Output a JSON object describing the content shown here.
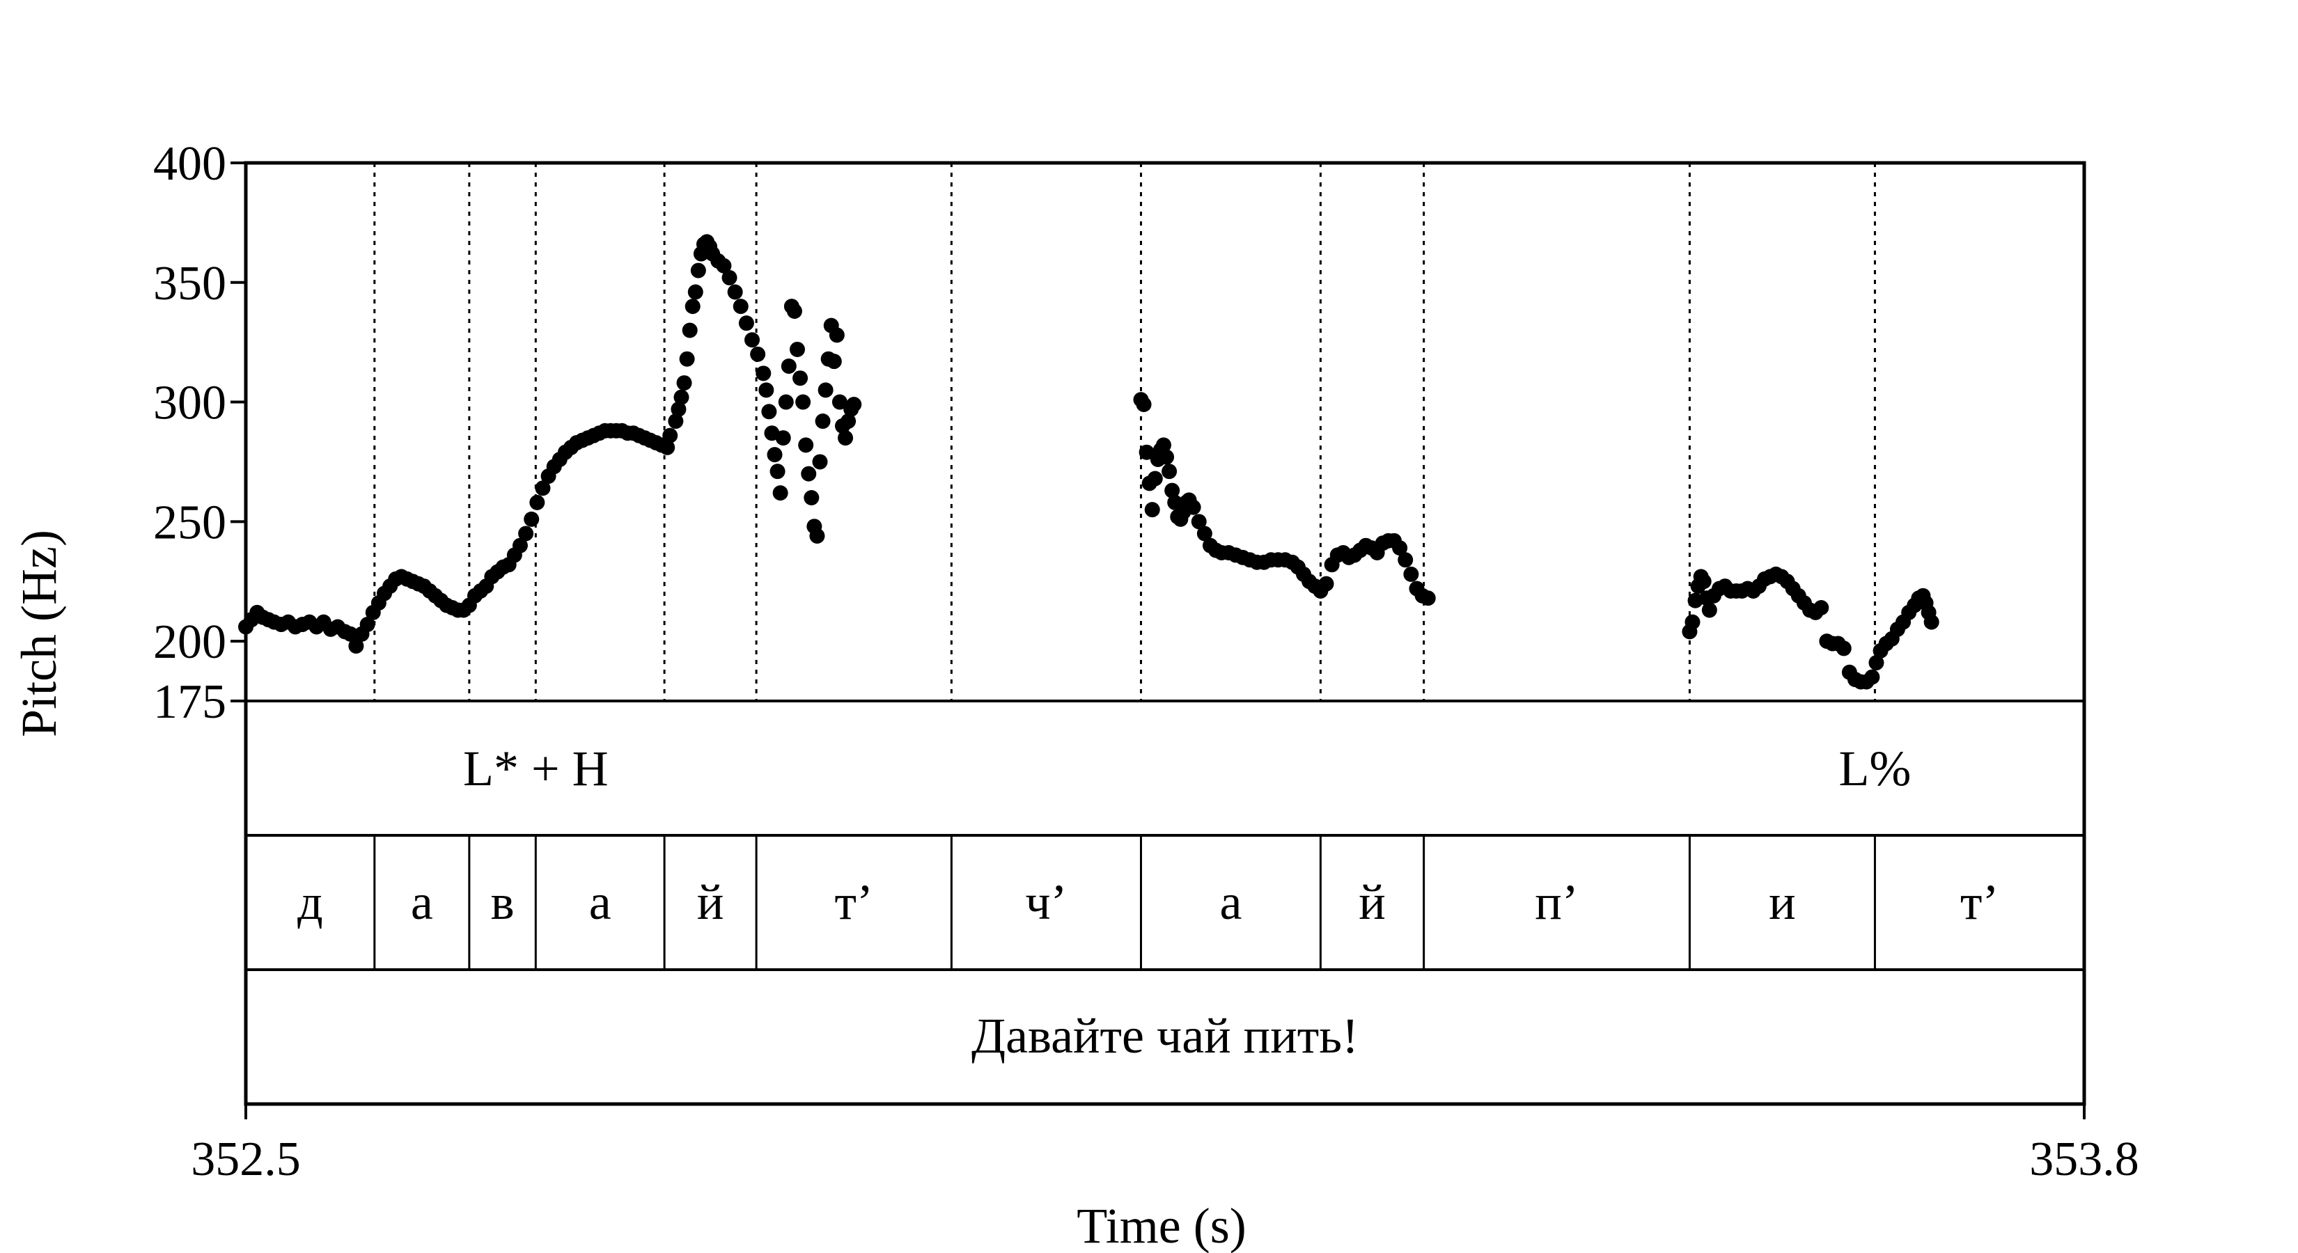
{
  "chart_data": {
    "type": "scatter",
    "title": "",
    "xlabel": "Time (s)",
    "ylabel": "Pitch (Hz)",
    "xlim": [
      352.5,
      353.8
    ],
    "ylim": [
      175,
      400
    ],
    "y_ticks": [
      175,
      200,
      250,
      300,
      350,
      400
    ],
    "x_tick_labels": [
      "352.5",
      "353.8"
    ],
    "grid": false,
    "boundary_times": [
      352.591,
      352.658,
      352.705,
      352.796,
      352.861,
      352.999,
      353.133,
      353.26,
      353.333,
      353.521,
      353.652
    ],
    "tiers": {
      "tones": [
        {
          "label": "L* + H",
          "time": 352.705
        },
        {
          "label": "L%",
          "time": 353.652
        }
      ],
      "segments": [
        "д",
        "а",
        "в",
        "а",
        "й",
        "т’",
        "ч’",
        "а",
        "й",
        "п’",
        "и",
        "т’"
      ],
      "sentence": "Давайте чай пить!"
    },
    "series": [
      {
        "values": [
          [
            352.5,
            206
          ],
          [
            352.504,
            209
          ],
          [
            352.508,
            212
          ],
          [
            352.512,
            210
          ],
          [
            352.516,
            209
          ],
          [
            352.52,
            208
          ],
          [
            352.525,
            207
          ],
          [
            352.53,
            208
          ],
          [
            352.535,
            206
          ],
          [
            352.54,
            207
          ],
          [
            352.545,
            208
          ],
          [
            352.55,
            206
          ],
          [
            352.555,
            208
          ],
          [
            352.56,
            205
          ],
          [
            352.565,
            206
          ],
          [
            352.57,
            204
          ],
          [
            352.574,
            203
          ],
          [
            352.578,
            198
          ],
          [
            352.582,
            203
          ],
          [
            352.586,
            207
          ],
          [
            352.59,
            212
          ],
          [
            352.594,
            216
          ],
          [
            352.598,
            220
          ],
          [
            352.602,
            223
          ],
          [
            352.606,
            226
          ],
          [
            352.61,
            227
          ],
          [
            352.614,
            226
          ],
          [
            352.618,
            225
          ],
          [
            352.622,
            224
          ],
          [
            352.626,
            223
          ],
          [
            352.63,
            221
          ],
          [
            352.634,
            219
          ],
          [
            352.638,
            217
          ],
          [
            352.642,
            215
          ],
          [
            352.646,
            214
          ],
          [
            352.65,
            213
          ],
          [
            352.654,
            213
          ],
          [
            352.658,
            215
          ],
          [
            352.662,
            219
          ],
          [
            352.666,
            221
          ],
          [
            352.67,
            223
          ],
          [
            352.674,
            227
          ],
          [
            352.678,
            229
          ],
          [
            352.682,
            231
          ],
          [
            352.686,
            232
          ],
          [
            352.69,
            236
          ],
          [
            352.694,
            240
          ],
          [
            352.698,
            245
          ],
          [
            352.702,
            251
          ],
          [
            352.706,
            258
          ],
          [
            352.71,
            264
          ],
          [
            352.714,
            269
          ],
          [
            352.718,
            273
          ],
          [
            352.722,
            276
          ],
          [
            352.726,
            279
          ],
          [
            352.73,
            281
          ],
          [
            352.734,
            283
          ],
          [
            352.738,
            284
          ],
          [
            352.742,
            285
          ],
          [
            352.746,
            286
          ],
          [
            352.75,
            287
          ],
          [
            352.754,
            288
          ],
          [
            352.758,
            288
          ],
          [
            352.762,
            288
          ],
          [
            352.766,
            288
          ],
          [
            352.77,
            287
          ],
          [
            352.774,
            287
          ],
          [
            352.778,
            286
          ],
          [
            352.782,
            285
          ],
          [
            352.786,
            284
          ],
          [
            352.79,
            283
          ],
          [
            352.794,
            282
          ],
          [
            352.798,
            281
          ],
          [
            352.8,
            286
          ],
          [
            352.804,
            292
          ],
          [
            352.806,
            297
          ],
          [
            352.808,
            302
          ],
          [
            352.81,
            308
          ],
          [
            352.812,
            318
          ],
          [
            352.814,
            330
          ],
          [
            352.816,
            340
          ],
          [
            352.818,
            346
          ],
          [
            352.82,
            355
          ],
          [
            352.822,
            362
          ],
          [
            352.824,
            366
          ],
          [
            352.826,
            367
          ],
          [
            352.828,
            365
          ],
          [
            352.83,
            362
          ],
          [
            352.834,
            359
          ],
          [
            352.838,
            357
          ],
          [
            352.842,
            352
          ],
          [
            352.846,
            346
          ],
          [
            352.85,
            340
          ],
          [
            352.854,
            333
          ],
          [
            352.858,
            326
          ],
          [
            352.862,
            320
          ],
          [
            352.866,
            312
          ],
          [
            352.868,
            305
          ],
          [
            352.87,
            296
          ],
          [
            352.872,
            287
          ],
          [
            352.874,
            278
          ],
          [
            352.876,
            271
          ],
          [
            352.878,
            262
          ],
          [
            352.88,
            285
          ],
          [
            352.882,
            300
          ],
          [
            352.884,
            315
          ],
          [
            352.886,
            340
          ],
          [
            352.888,
            338
          ],
          [
            352.89,
            322
          ],
          [
            352.892,
            310
          ],
          [
            352.894,
            300
          ],
          [
            352.896,
            282
          ],
          [
            352.898,
            270
          ],
          [
            352.9,
            260
          ],
          [
            352.902,
            248
          ],
          [
            352.904,
            244
          ],
          [
            352.906,
            275
          ],
          [
            352.908,
            292
          ],
          [
            352.91,
            305
          ],
          [
            352.912,
            318
          ],
          [
            352.914,
            332
          ],
          [
            352.916,
            317
          ],
          [
            352.918,
            328
          ],
          [
            352.92,
            300
          ],
          [
            352.922,
            290
          ],
          [
            352.924,
            285
          ],
          [
            352.926,
            292
          ],
          [
            352.928,
            297
          ],
          [
            352.93,
            299
          ],
          [
            353.133,
            301
          ],
          [
            353.135,
            299
          ],
          [
            353.137,
            279
          ],
          [
            353.139,
            266
          ],
          [
            353.141,
            255
          ],
          [
            353.143,
            268
          ],
          [
            353.145,
            276
          ],
          [
            353.147,
            280
          ],
          [
            353.149,
            282
          ],
          [
            353.151,
            277
          ],
          [
            353.153,
            271
          ],
          [
            353.155,
            263
          ],
          [
            353.157,
            258
          ],
          [
            353.159,
            252
          ],
          [
            353.161,
            251
          ],
          [
            353.163,
            254
          ],
          [
            353.165,
            258
          ],
          [
            353.167,
            259
          ],
          [
            353.17,
            256
          ],
          [
            353.174,
            250
          ],
          [
            353.178,
            245
          ],
          [
            353.182,
            240
          ],
          [
            353.186,
            238
          ],
          [
            353.19,
            237
          ],
          [
            353.195,
            237
          ],
          [
            353.2,
            236
          ],
          [
            353.205,
            235
          ],
          [
            353.21,
            234
          ],
          [
            353.215,
            233
          ],
          [
            353.22,
            233
          ],
          [
            353.225,
            234
          ],
          [
            353.23,
            234
          ],
          [
            353.235,
            234
          ],
          [
            353.24,
            233
          ],
          [
            353.244,
            231
          ],
          [
            353.248,
            228
          ],
          [
            353.252,
            225
          ],
          [
            353.256,
            223
          ],
          [
            353.26,
            221
          ],
          [
            353.264,
            224
          ],
          [
            353.268,
            232
          ],
          [
            353.272,
            236
          ],
          [
            353.276,
            237
          ],
          [
            353.28,
            235
          ],
          [
            353.284,
            236
          ],
          [
            353.288,
            238
          ],
          [
            353.292,
            240
          ],
          [
            353.296,
            239
          ],
          [
            353.3,
            237
          ],
          [
            353.304,
            241
          ],
          [
            353.308,
            242
          ],
          [
            353.312,
            242
          ],
          [
            353.316,
            239
          ],
          [
            353.32,
            234
          ],
          [
            353.324,
            228
          ],
          [
            353.328,
            222
          ],
          [
            353.332,
            219
          ],
          [
            353.336,
            218
          ],
          [
            353.521,
            204
          ],
          [
            353.523,
            208
          ],
          [
            353.525,
            217
          ],
          [
            353.527,
            223
          ],
          [
            353.529,
            227
          ],
          [
            353.531,
            225
          ],
          [
            353.533,
            218
          ],
          [
            353.535,
            213
          ],
          [
            353.538,
            219
          ],
          [
            353.542,
            222
          ],
          [
            353.546,
            223
          ],
          [
            353.55,
            221
          ],
          [
            353.554,
            221
          ],
          [
            353.558,
            221
          ],
          [
            353.562,
            222
          ],
          [
            353.566,
            221
          ],
          [
            353.57,
            223
          ],
          [
            353.574,
            226
          ],
          [
            353.578,
            227
          ],
          [
            353.582,
            228
          ],
          [
            353.586,
            227
          ],
          [
            353.59,
            225
          ],
          [
            353.594,
            222
          ],
          [
            353.598,
            219
          ],
          [
            353.602,
            216
          ],
          [
            353.606,
            213
          ],
          [
            353.61,
            212
          ],
          [
            353.614,
            214
          ],
          [
            353.618,
            200
          ],
          [
            353.622,
            199
          ],
          [
            353.626,
            199
          ],
          [
            353.63,
            197
          ],
          [
            353.634,
            187
          ],
          [
            353.638,
            184
          ],
          [
            353.642,
            183
          ],
          [
            353.646,
            183
          ],
          [
            353.65,
            185
          ],
          [
            353.653,
            191
          ],
          [
            353.656,
            196
          ],
          [
            353.66,
            199
          ],
          [
            353.664,
            201
          ],
          [
            353.668,
            205
          ],
          [
            353.672,
            208
          ],
          [
            353.676,
            212
          ],
          [
            353.68,
            215
          ],
          [
            353.683,
            218
          ],
          [
            353.686,
            219
          ],
          [
            353.688,
            216
          ],
          [
            353.69,
            212
          ],
          [
            353.692,
            208
          ]
        ]
      }
    ]
  }
}
